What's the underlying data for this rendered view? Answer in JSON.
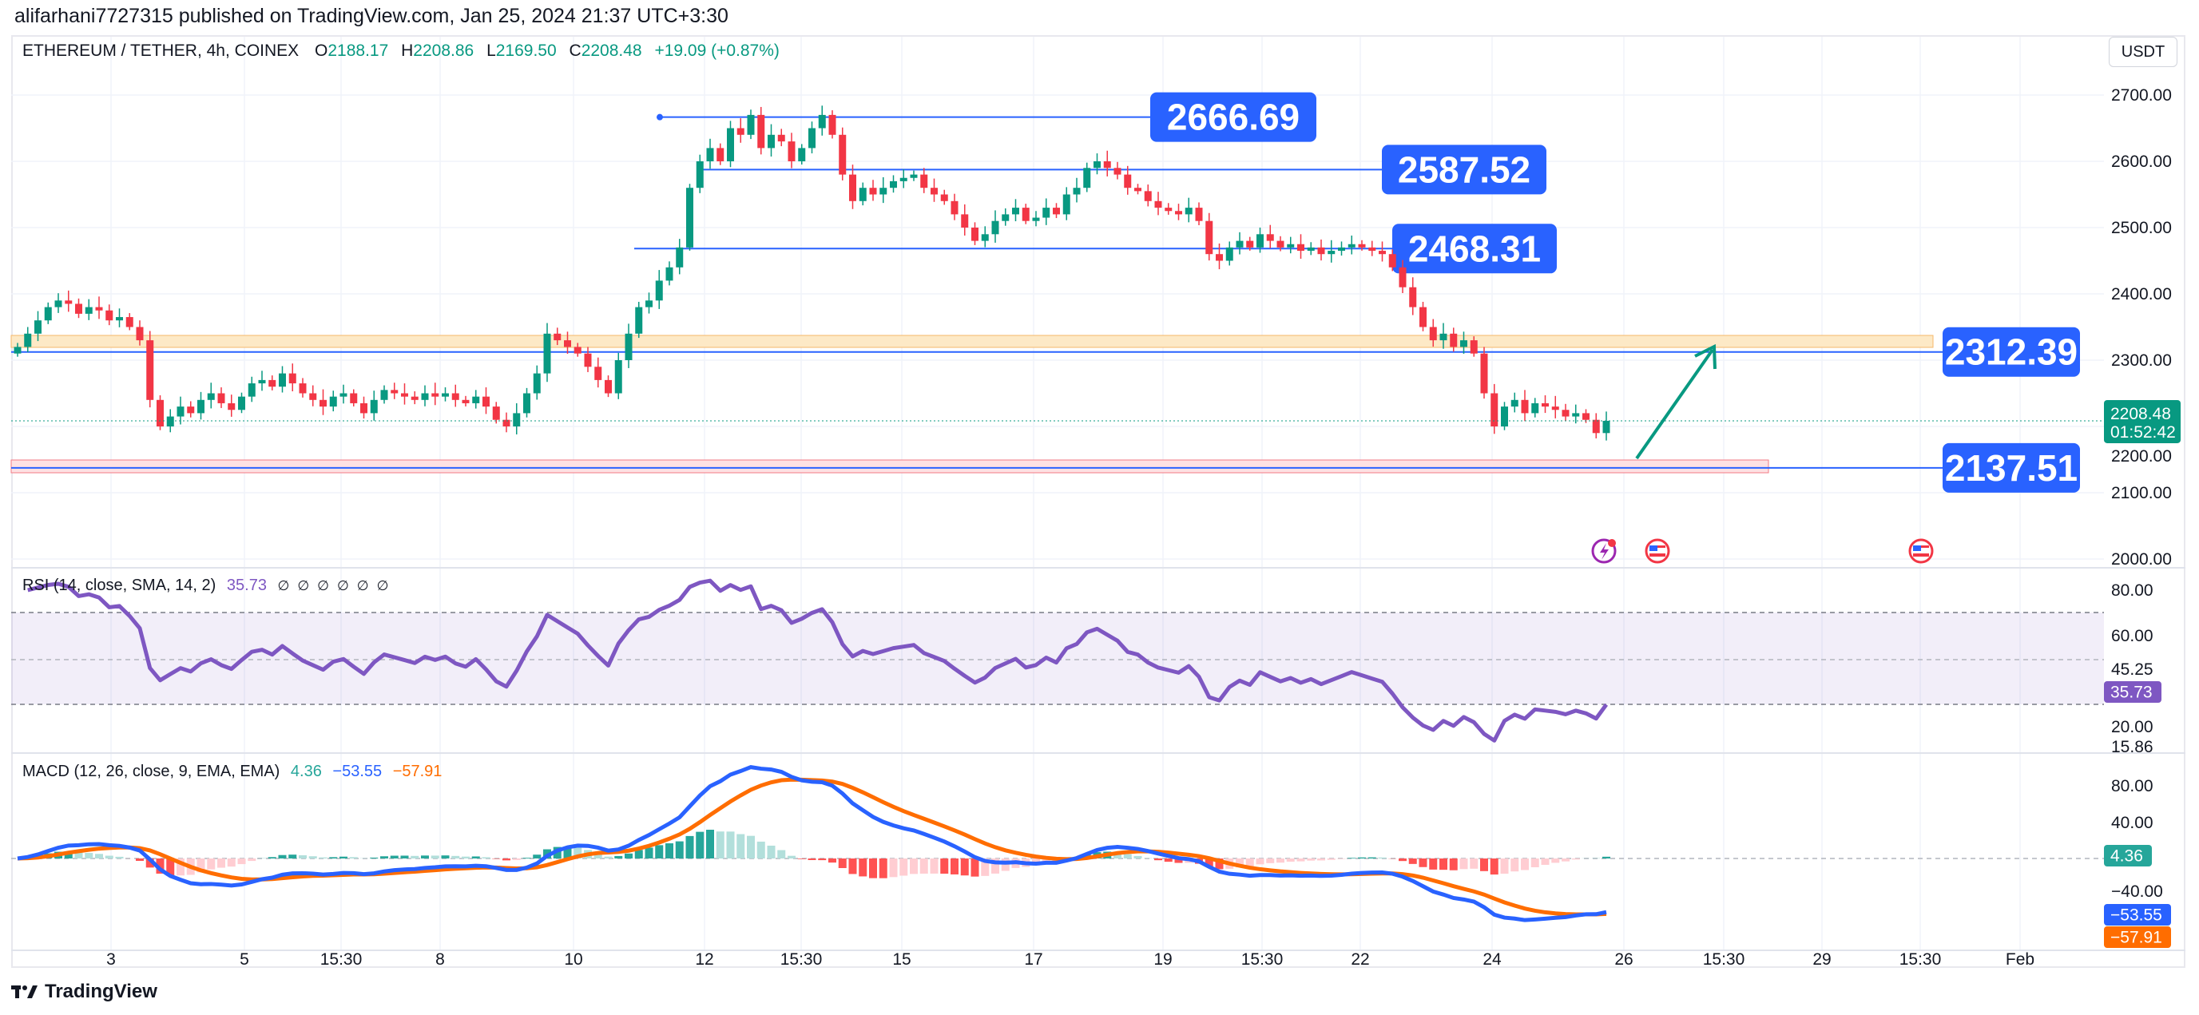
{
  "publisher": "alifarhani7727315 published on TradingView.com, Jan 25, 2024 21:37 UTC+3:30",
  "symbol": {
    "title": "ETHEREUM / TETHER, 4h, COINEX",
    "o_label": "O",
    "o": "2188.17",
    "h_label": "H",
    "h": "2208.86",
    "l_label": "L",
    "l": "2169.50",
    "c_label": "C",
    "c": "2208.48",
    "change": "+19.09 (+0.87%)"
  },
  "currency_button": "USDT",
  "price_axis": [
    "2700.00",
    "2600.00",
    "2500.00",
    "2400.00",
    "2300.00",
    "2200.00",
    "2100.00",
    "2000.00"
  ],
  "last_price": {
    "value": "2208.48",
    "countdown": "01:52:42"
  },
  "levels": [
    {
      "label": "2666.69",
      "price": 2666.69
    },
    {
      "label": "2587.52",
      "price": 2587.52
    },
    {
      "label": "2468.31",
      "price": 2468.31
    },
    {
      "label": "2312.39",
      "price": 2312.39
    },
    {
      "label": "2137.51",
      "price": 2137.51
    }
  ],
  "rsi": {
    "title": "RSI (14, close, SMA, 14, 2)",
    "value": "35.73",
    "na": [
      "∅",
      "∅",
      "∅",
      "∅",
      "∅",
      "∅"
    ],
    "axis": [
      "80.00",
      "60.00",
      "45.25",
      "20.00",
      "15.86"
    ]
  },
  "macd": {
    "title": "MACD (12, 26, close, 9, EMA, EMA)",
    "hist": "4.36",
    "macd": "−53.55",
    "signal": "−57.91",
    "axis": [
      "80.00",
      "40.00",
      "−40.00"
    ]
  },
  "time_axis": [
    "3",
    "5",
    "15:30",
    "8",
    "10",
    "12",
    "15:30",
    "15",
    "17",
    "19",
    "15:30",
    "22",
    "24",
    "26",
    "15:30",
    "29",
    "15:30",
    "Feb"
  ],
  "footer": "TradingView",
  "colors": {
    "up": "#089981",
    "down": "#f23645",
    "level": "#2962ff",
    "rsi": "#7e57c2",
    "macd": "#2962ff",
    "signal": "#ff6d00",
    "arrow": "#089981"
  },
  "chart_data": {
    "type": "candlestick",
    "interval": "4h",
    "closes": [
      2320,
      2340,
      2360,
      2380,
      2390,
      2385,
      2370,
      2380,
      2375,
      2360,
      2365,
      2350,
      2330,
      2240,
      2200,
      2215,
      2230,
      2220,
      2240,
      2250,
      2235,
      2225,
      2245,
      2265,
      2270,
      2260,
      2280,
      2265,
      2250,
      2240,
      2230,
      2245,
      2250,
      2235,
      2220,
      2240,
      2255,
      2250,
      2245,
      2240,
      2250,
      2245,
      2250,
      2240,
      2235,
      2245,
      2230,
      2210,
      2200,
      2220,
      2250,
      2280,
      2340,
      2330,
      2320,
      2310,
      2290,
      2270,
      2250,
      2300,
      2340,
      2380,
      2390,
      2420,
      2440,
      2470,
      2560,
      2600,
      2620,
      2600,
      2650,
      2640,
      2670,
      2620,
      2640,
      2630,
      2600,
      2620,
      2650,
      2670,
      2640,
      2580,
      2540,
      2560,
      2550,
      2560,
      2570,
      2575,
      2580,
      2560,
      2550,
      2540,
      2520,
      2500,
      2480,
      2490,
      2510,
      2520,
      2530,
      2510,
      2515,
      2530,
      2520,
      2550,
      2560,
      2590,
      2600,
      2590,
      2580,
      2560,
      2555,
      2540,
      2530,
      2525,
      2520,
      2530,
      2510,
      2460,
      2450,
      2470,
      2480,
      2470,
      2490,
      2480,
      2470,
      2475,
      2465,
      2470,
      2460,
      2465,
      2470,
      2475,
      2470,
      2465,
      2460,
      2440,
      2410,
      2380,
      2350,
      2330,
      2340,
      2320,
      2330,
      2310,
      2250,
      2200,
      2230,
      2240,
      2220,
      2235,
      2230,
      2225,
      2215,
      2220,
      2210,
      2190,
      2208.48
    ],
    "price_range": [
      2000,
      2700
    ]
  }
}
